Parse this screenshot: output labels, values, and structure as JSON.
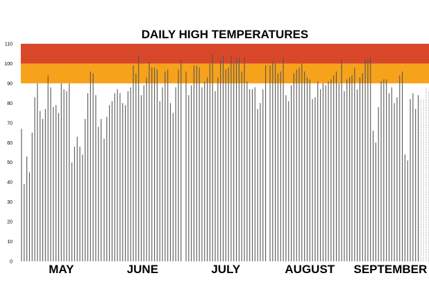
{
  "chart_data": {
    "type": "bar",
    "title": "DAILY HIGH TEMPERATURES",
    "xlabel": "",
    "ylabel": "",
    "ylim": [
      0,
      110
    ],
    "yticks": [
      0,
      10,
      20,
      30,
      40,
      50,
      60,
      70,
      80,
      90,
      100,
      110
    ],
    "grid": false,
    "legend": "none",
    "bands": [
      {
        "from": 90,
        "to": 100,
        "color": "#F7A21B"
      },
      {
        "from": 100,
        "to": 110,
        "color": "#D9472B"
      }
    ],
    "colors": {
      "bar": "#555555",
      "bar_forecast": "#999999"
    },
    "months": [
      {
        "label": "MAY",
        "values": [
          67,
          39,
          53,
          45,
          65,
          83,
          90,
          76,
          72,
          77,
          94,
          88,
          78,
          79,
          75,
          90,
          87,
          86,
          90,
          50,
          58,
          63,
          58,
          54,
          72,
          85,
          96,
          95,
          84,
          68,
          72
        ]
      },
      {
        "label": "JUNE",
        "values": [
          62,
          73,
          79,
          81,
          85,
          87,
          85,
          80,
          79,
          86,
          88,
          99,
          95,
          104,
          84,
          89,
          93,
          101,
          98,
          98,
          97,
          81,
          88,
          96,
          97,
          80,
          75,
          88,
          97,
          102
        ]
      },
      {
        "label": "JULY",
        "values": [
          96,
          84,
          89,
          99,
          99,
          98,
          88,
          91,
          93,
          100,
          105,
          86,
          93,
          102,
          104,
          97,
          98,
          104,
          100,
          102,
          103,
          96,
          103,
          91,
          87,
          87,
          88,
          77,
          80,
          87,
          99
        ]
      },
      {
        "label": "AUGUST",
        "values": [
          99,
          101,
          100,
          95,
          96,
          103,
          84,
          81,
          89,
          95,
          97,
          98,
          100,
          96,
          93,
          92,
          82,
          83,
          91,
          87,
          90,
          89,
          91,
          92,
          94,
          96,
          90,
          102,
          86,
          92,
          93
        ]
      },
      {
        "label": "SEPTEMBER",
        "values": [
          94,
          98,
          87,
          93,
          95,
          102,
          102,
          103,
          66,
          60,
          78,
          91,
          92,
          92,
          85,
          88,
          80,
          83,
          94,
          96,
          54,
          51,
          82,
          85,
          77,
          84,
          82,
          82,
          88,
          86
        ]
      }
    ],
    "forecast_from": {
      "month": 4,
      "day_index": 26
    }
  }
}
